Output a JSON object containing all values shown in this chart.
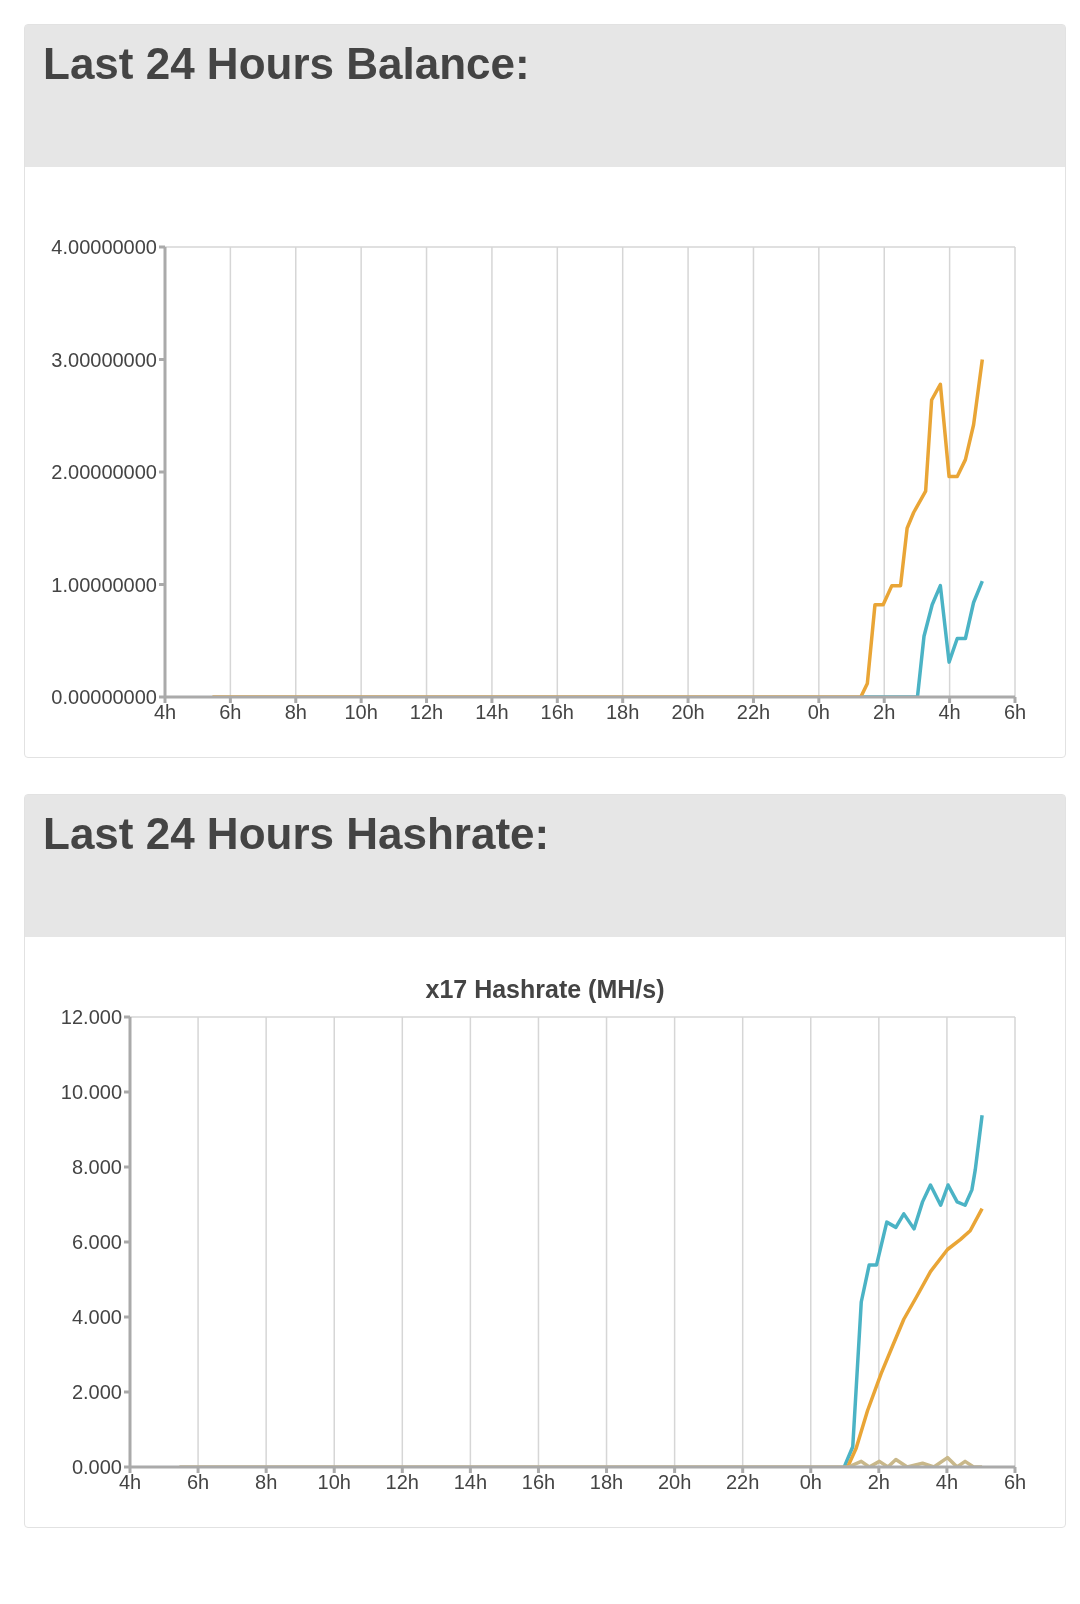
{
  "chart_data": [
    {
      "type": "line",
      "title": "Last 24 Hours Balance:",
      "xlim": [
        "--01-01T04:00",
        "--01-02T06:00"
      ],
      "xticks": [
        {
          "value": "--01-01T04:00",
          "label": "4h"
        },
        {
          "value": "--01-01T06:00",
          "label": "6h"
        },
        {
          "value": "--01-01T08:00",
          "label": "8h"
        },
        {
          "value": "--01-01T10:00",
          "label": "10h"
        },
        {
          "value": "--01-01T12:00",
          "label": "12h"
        },
        {
          "value": "--01-01T14:00",
          "label": "14h"
        },
        {
          "value": "--01-01T16:00",
          "label": "16h"
        },
        {
          "value": "--01-01T18:00",
          "label": "18h"
        },
        {
          "value": "--01-01T20:00",
          "label": "20h"
        },
        {
          "value": "--01-01T22:00",
          "label": "22h"
        },
        {
          "value": "--01-02T00:00",
          "label": "0h"
        },
        {
          "value": "--01-02T02:00",
          "label": "2h"
        },
        {
          "value": "--01-02T04:00",
          "label": "4h"
        },
        {
          "value": "--01-02T06:00",
          "label": "6h"
        }
      ],
      "ylim": [
        0,
        4
      ],
      "yticks": [
        {
          "value": 0,
          "label": "0.00000000"
        },
        {
          "value": 1,
          "label": "1.00000000"
        },
        {
          "value": 2,
          "label": "2.00000000"
        },
        {
          "value": 3,
          "label": "3.00000000"
        },
        {
          "value": 4,
          "label": "4.00000000"
        }
      ],
      "grid": true,
      "legend": false,
      "marker": "none",
      "line_style": "solid",
      "series": [
        {
          "color": "#4bb3c5",
          "x": [
            "--01-02T01:18",
            "--01-02T03:01",
            "--01-02T03:13",
            "--01-02T03:28",
            "--01-02T03:43",
            "--01-02T03:59",
            "--01-02T04:14",
            "--01-02T04:29",
            "--01-02T04:44",
            "--01-02T05:00"
          ],
          "values": [
            0,
            0,
            0.54,
            0.82,
            0.99,
            0.31,
            0.52,
            0.52,
            0.84,
            1.03
          ]
        },
        {
          "color": "#e9a536",
          "x": [
            "--01-01T05:27",
            "--01-02T01:17",
            "--01-02T01:29",
            "--01-02T01:43",
            "--01-02T01:58",
            "--01-02T02:14",
            "--01-02T02:30",
            "--01-02T02:42",
            "--01-02T02:54",
            "--01-02T03:16",
            "--01-02T03:27",
            "--01-02T03:43",
            "--01-02T03:59",
            "--01-02T04:14",
            "--01-02T04:29",
            "--01-02T04:44",
            "--01-02T05:00"
          ],
          "values": [
            0,
            0,
            0.12,
            0.82,
            0.82,
            0.99,
            0.99,
            1.5,
            1.64,
            1.83,
            2.64,
            2.78,
            1.96,
            1.96,
            2.11,
            2.42,
            3.0
          ]
        }
      ]
    },
    {
      "type": "line",
      "title": "Last 24 Hours Hashrate:",
      "subtitle": "x17 Hashrate (MH/s)",
      "xlim": [
        "--01-01T04:00",
        "--01-02T06:00"
      ],
      "xticks": [
        {
          "value": "--01-01T04:00",
          "label": "4h"
        },
        {
          "value": "--01-01T06:00",
          "label": "6h"
        },
        {
          "value": "--01-01T08:00",
          "label": "8h"
        },
        {
          "value": "--01-01T10:00",
          "label": "10h"
        },
        {
          "value": "--01-01T12:00",
          "label": "12h"
        },
        {
          "value": "--01-01T14:00",
          "label": "14h"
        },
        {
          "value": "--01-01T16:00",
          "label": "16h"
        },
        {
          "value": "--01-01T18:00",
          "label": "18h"
        },
        {
          "value": "--01-01T20:00",
          "label": "20h"
        },
        {
          "value": "--01-01T22:00",
          "label": "22h"
        },
        {
          "value": "--01-02T00:00",
          "label": "0h"
        },
        {
          "value": "--01-02T02:00",
          "label": "2h"
        },
        {
          "value": "--01-02T04:00",
          "label": "4h"
        },
        {
          "value": "--01-02T06:00",
          "label": "6h"
        }
      ],
      "ylim": [
        0,
        12
      ],
      "yticks": [
        {
          "value": 0,
          "label": "0.000"
        },
        {
          "value": 2,
          "label": "2.000"
        },
        {
          "value": 4,
          "label": "4.000"
        },
        {
          "value": 6,
          "label": "6.000"
        },
        {
          "value": 8,
          "label": "8.000"
        },
        {
          "value": 10,
          "label": "10.000"
        },
        {
          "value": 12,
          "label": "12.000"
        }
      ],
      "grid": true,
      "legend": false,
      "marker": "none",
      "line_style": "solid",
      "series": [
        {
          "color": "#4bb3c5",
          "x": [
            "--01-02T00:59",
            "--01-02T01:14",
            "--01-02T01:29",
            "--01-02T01:43",
            "--01-02T01:56",
            "--01-02T02:14",
            "--01-02T02:30",
            "--01-02T02:44",
            "--01-02T03:02",
            "--01-02T03:17",
            "--01-02T03:31",
            "--01-02T03:49",
            "--01-02T04:02",
            "--01-02T04:18",
            "--01-02T04:32",
            "--01-02T04:44",
            "--01-02T04:50",
            "--01-02T05:02"
          ],
          "values": [
            0,
            0.54,
            4.4,
            5.39,
            5.39,
            6.53,
            6.39,
            6.75,
            6.35,
            7.07,
            7.52,
            6.98,
            7.52,
            7.07,
            6.98,
            7.39,
            7.93,
            9.38
          ]
        },
        {
          "color": "#e9a536",
          "x": [
            "--01-02T01:05",
            "--01-02T01:20",
            "--01-02T01:40",
            "--01-02T02:04",
            "--01-02T02:24",
            "--01-02T02:44",
            "--01-02T03:08",
            "--01-02T03:31",
            "--01-02T04:01",
            "--01-02T04:24",
            "--01-02T04:41",
            "--01-02T05:02"
          ],
          "values": [
            0,
            0.5,
            1.5,
            2.49,
            3.22,
            3.94,
            4.58,
            5.21,
            5.8,
            6.07,
            6.3,
            6.89
          ]
        },
        {
          "color": "#c9b88a",
          "x": [
            "--01-01T05:27",
            "--01-02T01:06",
            "--01-02T01:29",
            "--01-02T01:43",
            "--01-02T02:01",
            "--01-02T02:16",
            "--01-02T02:30",
            "--01-02T02:50",
            "--01-02T03:17",
            "--01-02T03:37",
            "--01-02T04:01",
            "--01-02T04:18",
            "--01-02T04:32",
            "--01-02T04:47",
            "--01-02T05:02"
          ],
          "values": [
            0,
            0,
            0.15,
            0,
            0.15,
            0,
            0.2,
            0,
            0.1,
            0,
            0.25,
            0,
            0.15,
            0,
            0
          ]
        }
      ]
    }
  ]
}
